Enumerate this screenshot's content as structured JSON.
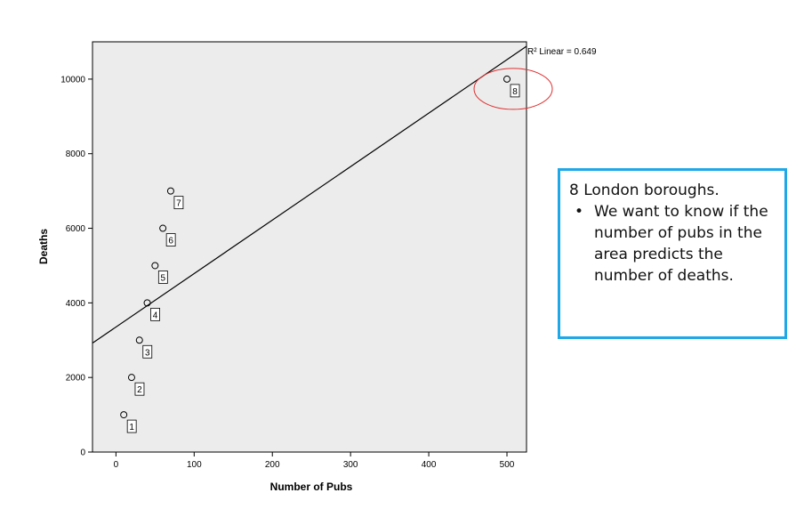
{
  "chart_data": {
    "type": "scatter",
    "xlabel": "Number of Pubs",
    "ylabel": "Deaths",
    "xlim": [
      -30,
      525
    ],
    "ylim": [
      0,
      11000
    ],
    "x_ticks": [
      "0",
      "100",
      "200",
      "300",
      "400",
      "500"
    ],
    "x_tick_values": [
      0,
      100,
      200,
      300,
      400,
      500
    ],
    "y_ticks": [
      "0",
      "2000",
      "4000",
      "6000",
      "8000",
      "10000"
    ],
    "y_tick_values": [
      0,
      2000,
      4000,
      6000,
      8000,
      10000
    ],
    "points": [
      {
        "label": "1",
        "x": 10,
        "y": 1000
      },
      {
        "label": "2",
        "x": 20,
        "y": 2000
      },
      {
        "label": "3",
        "x": 30,
        "y": 3000
      },
      {
        "label": "4",
        "x": 40,
        "y": 4000
      },
      {
        "label": "5",
        "x": 50,
        "y": 5000
      },
      {
        "label": "6",
        "x": 60,
        "y": 6000
      },
      {
        "label": "7",
        "x": 70,
        "y": 7000
      },
      {
        "label": "8",
        "x": 500,
        "y": 10000
      }
    ],
    "fit_line": {
      "intercept": 3351.96,
      "slope": 14.34
    },
    "fit_label": "R² Linear = 0.649",
    "highlighted_point": "8",
    "grid": false,
    "plot_background": "#ececec",
    "highlight_color": "#e03030"
  },
  "callout": {
    "title": "8 London boroughs.",
    "bullets": [
      "We want to know if the number of pubs in the area predicts the number of deaths."
    ],
    "border_color": "#1fa8e8"
  }
}
